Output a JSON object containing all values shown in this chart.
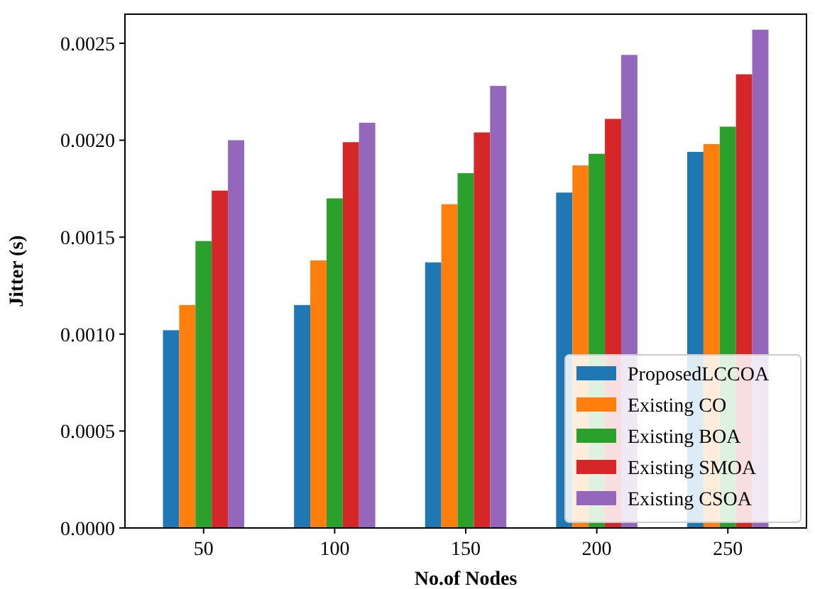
{
  "chart_data": {
    "type": "bar",
    "xlabel": "No.of Nodes",
    "ylabel": "Jitter (s)",
    "categories": [
      "50",
      "100",
      "150",
      "200",
      "250"
    ],
    "series": [
      {
        "name": "ProposedLCCOA",
        "color": "#1f77b4",
        "values": [
          0.00102,
          0.00115,
          0.00137,
          0.00173,
          0.00194
        ]
      },
      {
        "name": "Existing CO",
        "color": "#ff7f0e",
        "values": [
          0.00115,
          0.00138,
          0.00167,
          0.00187,
          0.00198
        ]
      },
      {
        "name": "Existing BOA",
        "color": "#2ca02c",
        "values": [
          0.00148,
          0.0017,
          0.00183,
          0.00193,
          0.00207
        ]
      },
      {
        "name": "Existing SMOA",
        "color": "#d62728",
        "values": [
          0.00174,
          0.00199,
          0.00204,
          0.00211,
          0.00234
        ]
      },
      {
        "name": "Existing CSOA",
        "color": "#9467bd",
        "values": [
          0.002,
          0.00209,
          0.00228,
          0.00244,
          0.00257
        ]
      }
    ],
    "ylim": [
      0,
      0.00265
    ],
    "yticks": [
      {
        "value": 0,
        "label": "0.0000"
      },
      {
        "value": 0.0005,
        "label": "0.0005"
      },
      {
        "value": 0.001,
        "label": "0.0010"
      },
      {
        "value": 0.0015,
        "label": "0.0015"
      },
      {
        "value": 0.002,
        "label": "0.0020"
      },
      {
        "value": 0.0025,
        "label": "0.0025"
      }
    ],
    "legend": "bottom right"
  }
}
